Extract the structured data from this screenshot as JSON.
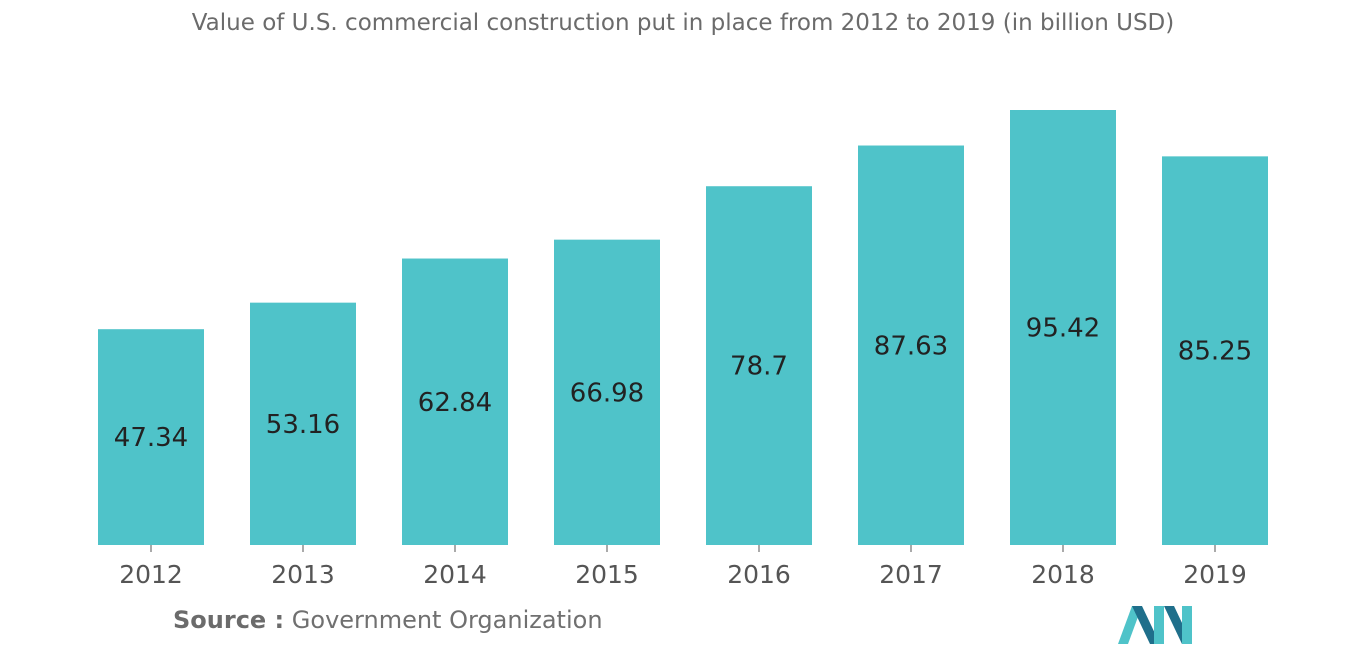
{
  "chart_data": {
    "type": "bar",
    "title": "Value of U.S. commercial construction put in place from 2012 to 2019 (in billion USD)",
    "categories": [
      "2012",
      "2013",
      "2014",
      "2015",
      "2016",
      "2017",
      "2018",
      "2019"
    ],
    "values": [
      47.34,
      53.16,
      62.84,
      66.98,
      78.7,
      87.63,
      95.42,
      85.25
    ],
    "value_labels": [
      "47.34",
      "53.16",
      "62.84",
      "66.98",
      "78.7",
      "87.63",
      "95.42",
      "85.25"
    ],
    "xlabel": "",
    "ylabel": "",
    "ylim": [
      0,
      95.42
    ],
    "grid": false,
    "bar_color": "#4fc3c9"
  },
  "source": {
    "label": "Source :",
    "text": "Government Organization"
  },
  "colors": {
    "title": "#6b6b6b",
    "axis_text": "#555555",
    "value_text": "#222222",
    "logo_dark": "#1f6f8b",
    "logo_light": "#4fc3c9"
  },
  "logo": {
    "name": "mordor-intelligence-logo"
  }
}
